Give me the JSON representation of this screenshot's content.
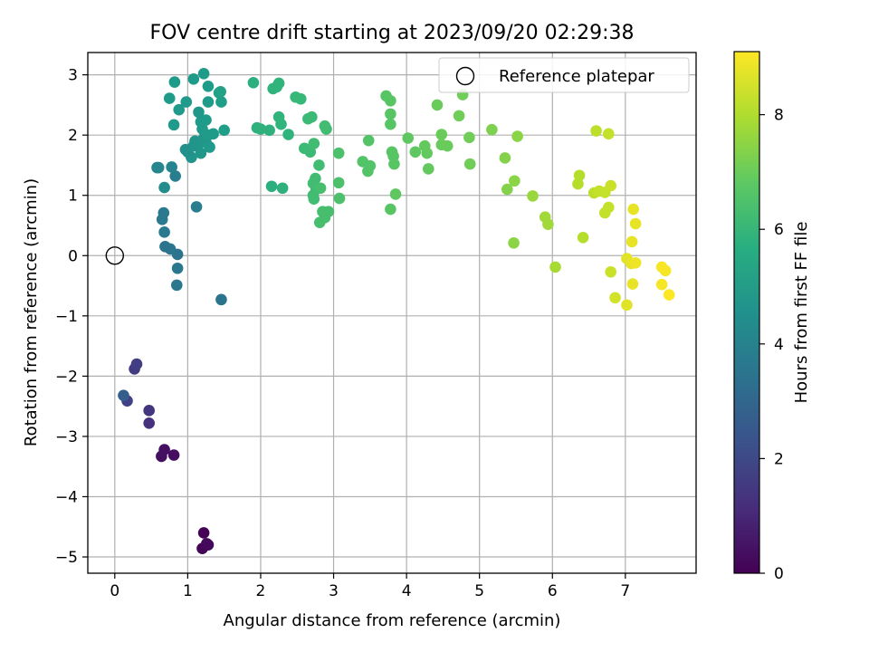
{
  "chart_data": {
    "type": "scatter",
    "title": "FOV centre drift starting at 2023/09/20 02:29:38",
    "xlabel": "Angular distance from reference (arcmin)",
    "ylabel": "Rotation from reference (arcmin)",
    "xlim": [
      -0.37,
      7.97
    ],
    "ylim": [
      -5.27,
      3.37
    ],
    "x_ticks": [
      0,
      1,
      2,
      3,
      4,
      5,
      6,
      7
    ],
    "y_ticks": [
      -5,
      -4,
      -3,
      -2,
      -1,
      0,
      1,
      2,
      3
    ],
    "grid": true,
    "colormap": "viridis",
    "colorbar": {
      "label": "Hours from first FF file",
      "range": [
        0,
        9.1
      ],
      "ticks": [
        0,
        2,
        4,
        6,
        8
      ]
    },
    "legend": {
      "position": "top-right",
      "entries": [
        {
          "label": "Reference platepar",
          "marker": "open-circle"
        }
      ]
    },
    "reference_point": {
      "x": 0,
      "y": 0
    },
    "points": [
      {
        "x": 1.22,
        "y": -4.6,
        "h": 0.05
      },
      {
        "x": 1.2,
        "y": -4.86,
        "h": 0.1
      },
      {
        "x": 1.26,
        "y": -4.78,
        "h": 0.15
      },
      {
        "x": 1.28,
        "y": -4.8,
        "h": 0.2
      },
      {
        "x": 0.81,
        "y": -3.31,
        "h": 0.3
      },
      {
        "x": 0.64,
        "y": -3.33,
        "h": 0.35
      },
      {
        "x": 0.68,
        "y": -3.22,
        "h": 0.4
      },
      {
        "x": 0.47,
        "y": -2.78,
        "h": 1.3
      },
      {
        "x": 0.47,
        "y": -2.57,
        "h": 1.4
      },
      {
        "x": 0.17,
        "y": -2.41,
        "h": 1.8
      },
      {
        "x": 0.12,
        "y": -2.32,
        "h": 2.7
      },
      {
        "x": 0.27,
        "y": -1.88,
        "h": 1.6
      },
      {
        "x": 0.3,
        "y": -1.8,
        "h": 1.7
      },
      {
        "x": 1.46,
        "y": -0.73,
        "h": 3.5
      },
      {
        "x": 0.85,
        "y": -0.49,
        "h": 3.6
      },
      {
        "x": 0.86,
        "y": -0.21,
        "h": 3.6
      },
      {
        "x": 0.86,
        "y": 0.02,
        "h": 3.5
      },
      {
        "x": 0.76,
        "y": 0.11,
        "h": 3.55
      },
      {
        "x": 0.69,
        "y": 0.15,
        "h": 3.5
      },
      {
        "x": 0.68,
        "y": 0.39,
        "h": 3.7
      },
      {
        "x": 0.65,
        "y": 0.6,
        "h": 3.7
      },
      {
        "x": 0.67,
        "y": 0.71,
        "h": 3.7
      },
      {
        "x": 1.12,
        "y": 0.81,
        "h": 3.9
      },
      {
        "x": 0.68,
        "y": 1.13,
        "h": 4.4
      },
      {
        "x": 0.83,
        "y": 1.32,
        "h": 3.9
      },
      {
        "x": 0.58,
        "y": 1.46,
        "h": 4.2
      },
      {
        "x": 0.6,
        "y": 1.46,
        "h": 4.2
      },
      {
        "x": 0.78,
        "y": 1.47,
        "h": 4.1
      },
      {
        "x": 1.05,
        "y": 1.63,
        "h": 4.7
      },
      {
        "x": 1.18,
        "y": 1.7,
        "h": 4.8
      },
      {
        "x": 1.0,
        "y": 1.72,
        "h": 4.6
      },
      {
        "x": 0.97,
        "y": 1.76,
        "h": 4.6
      },
      {
        "x": 1.3,
        "y": 1.8,
        "h": 4.9
      },
      {
        "x": 1.08,
        "y": 1.82,
        "h": 4.7
      },
      {
        "x": 1.15,
        "y": 1.85,
        "h": 4.8
      },
      {
        "x": 1.25,
        "y": 1.88,
        "h": 4.9
      },
      {
        "x": 1.1,
        "y": 1.9,
        "h": 4.7
      },
      {
        "x": 1.22,
        "y": 1.95,
        "h": 4.8
      },
      {
        "x": 1.28,
        "y": 2.0,
        "h": 4.9
      },
      {
        "x": 1.35,
        "y": 2.02,
        "h": 5.0
      },
      {
        "x": 1.5,
        "y": 2.08,
        "h": 5.1
      },
      {
        "x": 1.2,
        "y": 2.1,
        "h": 4.9
      },
      {
        "x": 1.18,
        "y": 2.22,
        "h": 4.9
      },
      {
        "x": 1.25,
        "y": 2.25,
        "h": 5.0
      },
      {
        "x": 0.81,
        "y": 2.17,
        "h": 4.9
      },
      {
        "x": 1.15,
        "y": 2.38,
        "h": 4.8
      },
      {
        "x": 0.88,
        "y": 2.42,
        "h": 4.9
      },
      {
        "x": 0.98,
        "y": 2.55,
        "h": 4.9
      },
      {
        "x": 1.28,
        "y": 2.55,
        "h": 5.0
      },
      {
        "x": 1.46,
        "y": 2.55,
        "h": 5.1
      },
      {
        "x": 0.75,
        "y": 2.61,
        "h": 5.0
      },
      {
        "x": 1.43,
        "y": 2.7,
        "h": 5.2
      },
      {
        "x": 1.45,
        "y": 2.72,
        "h": 5.2
      },
      {
        "x": 1.28,
        "y": 2.81,
        "h": 5.0
      },
      {
        "x": 0.82,
        "y": 2.88,
        "h": 5.0
      },
      {
        "x": 1.08,
        "y": 2.93,
        "h": 5.0
      },
      {
        "x": 1.22,
        "y": 3.02,
        "h": 5.0
      },
      {
        "x": 1.9,
        "y": 2.87,
        "h": 5.7
      },
      {
        "x": 2.12,
        "y": 2.08,
        "h": 5.8
      },
      {
        "x": 1.95,
        "y": 2.12,
        "h": 5.8
      },
      {
        "x": 2.0,
        "y": 2.1,
        "h": 5.8
      },
      {
        "x": 2.15,
        "y": 1.15,
        "h": 5.7
      },
      {
        "x": 2.3,
        "y": 1.12,
        "h": 5.8
      },
      {
        "x": 2.38,
        "y": 2.01,
        "h": 5.9
      },
      {
        "x": 2.28,
        "y": 2.18,
        "h": 5.9
      },
      {
        "x": 2.25,
        "y": 2.3,
        "h": 5.9
      },
      {
        "x": 2.17,
        "y": 2.77,
        "h": 5.9
      },
      {
        "x": 2.22,
        "y": 2.8,
        "h": 5.9
      },
      {
        "x": 2.25,
        "y": 2.86,
        "h": 5.9
      },
      {
        "x": 2.48,
        "y": 2.63,
        "h": 6.1
      },
      {
        "x": 2.55,
        "y": 2.6,
        "h": 6.1
      },
      {
        "x": 2.65,
        "y": 2.27,
        "h": 6.2
      },
      {
        "x": 2.7,
        "y": 2.3,
        "h": 6.2
      },
      {
        "x": 2.88,
        "y": 2.15,
        "h": 6.3
      },
      {
        "x": 2.9,
        "y": 2.1,
        "h": 6.3
      },
      {
        "x": 2.6,
        "y": 1.78,
        "h": 6.2
      },
      {
        "x": 2.68,
        "y": 1.72,
        "h": 6.2
      },
      {
        "x": 2.73,
        "y": 1.86,
        "h": 6.3
      },
      {
        "x": 2.8,
        "y": 1.5,
        "h": 6.3
      },
      {
        "x": 2.75,
        "y": 1.28,
        "h": 6.3
      },
      {
        "x": 2.72,
        "y": 1.2,
        "h": 6.3
      },
      {
        "x": 2.76,
        "y": 1.1,
        "h": 6.3
      },
      {
        "x": 2.82,
        "y": 1.12,
        "h": 6.4
      },
      {
        "x": 2.72,
        "y": 1.0,
        "h": 6.3
      },
      {
        "x": 2.73,
        "y": 0.94,
        "h": 6.3
      },
      {
        "x": 2.85,
        "y": 0.73,
        "h": 6.4
      },
      {
        "x": 2.93,
        "y": 0.73,
        "h": 6.4
      },
      {
        "x": 2.88,
        "y": 0.63,
        "h": 6.4
      },
      {
        "x": 2.81,
        "y": 0.55,
        "h": 6.4
      },
      {
        "x": 3.07,
        "y": 1.7,
        "h": 6.5
      },
      {
        "x": 3.07,
        "y": 1.21,
        "h": 6.5
      },
      {
        "x": 3.08,
        "y": 0.95,
        "h": 6.5
      },
      {
        "x": 3.4,
        "y": 1.56,
        "h": 6.6
      },
      {
        "x": 3.47,
        "y": 1.4,
        "h": 6.6
      },
      {
        "x": 3.5,
        "y": 1.49,
        "h": 6.6
      },
      {
        "x": 3.48,
        "y": 1.91,
        "h": 6.6
      },
      {
        "x": 3.72,
        "y": 2.65,
        "h": 6.7
      },
      {
        "x": 3.78,
        "y": 2.57,
        "h": 6.7
      },
      {
        "x": 3.78,
        "y": 2.35,
        "h": 6.7
      },
      {
        "x": 3.78,
        "y": 2.18,
        "h": 6.7
      },
      {
        "x": 3.8,
        "y": 1.72,
        "h": 6.7
      },
      {
        "x": 3.82,
        "y": 1.65,
        "h": 6.7
      },
      {
        "x": 3.83,
        "y": 1.52,
        "h": 6.7
      },
      {
        "x": 3.78,
        "y": 0.77,
        "h": 6.7
      },
      {
        "x": 3.85,
        "y": 1.02,
        "h": 6.8
      },
      {
        "x": 4.02,
        "y": 1.95,
        "h": 6.8
      },
      {
        "x": 4.12,
        "y": 1.72,
        "h": 6.8
      },
      {
        "x": 4.25,
        "y": 1.82,
        "h": 6.9
      },
      {
        "x": 4.28,
        "y": 1.7,
        "h": 6.9
      },
      {
        "x": 4.3,
        "y": 1.44,
        "h": 6.9
      },
      {
        "x": 4.42,
        "y": 2.5,
        "h": 7.0
      },
      {
        "x": 4.48,
        "y": 2.01,
        "h": 7.0
      },
      {
        "x": 4.48,
        "y": 1.84,
        "h": 7.0
      },
      {
        "x": 4.56,
        "y": 1.82,
        "h": 7.0
      },
      {
        "x": 4.72,
        "y": 2.32,
        "h": 7.1
      },
      {
        "x": 4.77,
        "y": 2.67,
        "h": 7.1
      },
      {
        "x": 4.86,
        "y": 1.96,
        "h": 7.1
      },
      {
        "x": 4.87,
        "y": 1.52,
        "h": 7.1
      },
      {
        "x": 5.17,
        "y": 2.09,
        "h": 7.3
      },
      {
        "x": 5.35,
        "y": 1.62,
        "h": 7.4
      },
      {
        "x": 5.38,
        "y": 1.1,
        "h": 7.4
      },
      {
        "x": 5.48,
        "y": 1.24,
        "h": 7.5
      },
      {
        "x": 5.52,
        "y": 1.98,
        "h": 7.5
      },
      {
        "x": 5.47,
        "y": 0.21,
        "h": 7.5
      },
      {
        "x": 5.73,
        "y": 0.99,
        "h": 7.7
      },
      {
        "x": 5.9,
        "y": 0.64,
        "h": 7.8
      },
      {
        "x": 5.94,
        "y": 0.52,
        "h": 7.8
      },
      {
        "x": 6.04,
        "y": -0.19,
        "h": 7.9
      },
      {
        "x": 6.35,
        "y": 1.19,
        "h": 8.1
      },
      {
        "x": 6.37,
        "y": 1.33,
        "h": 8.1
      },
      {
        "x": 6.42,
        "y": 0.3,
        "h": 8.1
      },
      {
        "x": 6.57,
        "y": 1.04,
        "h": 8.2
      },
      {
        "x": 6.6,
        "y": 2.07,
        "h": 8.2
      },
      {
        "x": 6.64,
        "y": 1.07,
        "h": 8.3
      },
      {
        "x": 6.72,
        "y": 1.05,
        "h": 8.3
      },
      {
        "x": 6.72,
        "y": 0.71,
        "h": 8.3
      },
      {
        "x": 6.77,
        "y": 0.8,
        "h": 8.3
      },
      {
        "x": 6.77,
        "y": 2.02,
        "h": 8.3
      },
      {
        "x": 6.8,
        "y": 1.16,
        "h": 8.4
      },
      {
        "x": 6.8,
        "y": -0.27,
        "h": 8.4
      },
      {
        "x": 6.86,
        "y": -0.7,
        "h": 8.5
      },
      {
        "x": 7.02,
        "y": -0.05,
        "h": 8.7
      },
      {
        "x": 7.02,
        "y": -0.82,
        "h": 8.7
      },
      {
        "x": 7.08,
        "y": -0.13,
        "h": 8.8
      },
      {
        "x": 7.09,
        "y": 0.23,
        "h": 8.8
      },
      {
        "x": 7.1,
        "y": -0.47,
        "h": 8.8
      },
      {
        "x": 7.11,
        "y": 0.77,
        "h": 8.8
      },
      {
        "x": 7.14,
        "y": 0.53,
        "h": 8.8
      },
      {
        "x": 7.14,
        "y": -0.12,
        "h": 8.9
      },
      {
        "x": 7.5,
        "y": -0.48,
        "h": 9.0
      },
      {
        "x": 7.5,
        "y": -0.19,
        "h": 9.0
      },
      {
        "x": 7.55,
        "y": -0.25,
        "h": 9.0
      },
      {
        "x": 7.6,
        "y": -0.65,
        "h": 9.1
      }
    ]
  }
}
